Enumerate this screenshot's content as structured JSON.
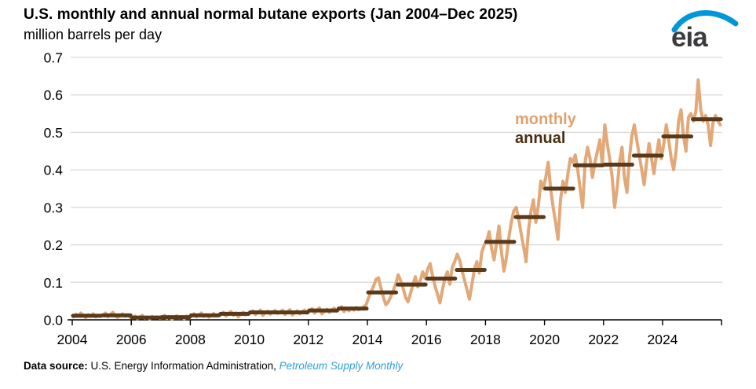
{
  "header": {
    "title": "U.S. monthly and annual normal butane exports (Jan 2004–Dec 2025)",
    "subtitle": "million barrels per day"
  },
  "logo": {
    "text": "eia"
  },
  "legend": {
    "monthly_label": "monthly",
    "annual_label": "annual"
  },
  "footer": {
    "label": "Data source: ",
    "organization": "U.S. Energy Information Administration, ",
    "publication": "Petroleum Supply Monthly"
  },
  "colors": {
    "monthly": "#e2a878",
    "annual": "#5b3a1a",
    "legend_monthly": "#dfa270",
    "legend_annual": "#4b2e11",
    "grid": "#d9d9d9",
    "axis": "#000000",
    "tick_text": "#000000",
    "link_blue": "#2f9fd6",
    "logo_blue": "#0096d7",
    "logo_text": "#3b3b3d"
  },
  "chart_data": {
    "type": "line",
    "title": "U.S. monthly and annual normal butane exports (Jan 2004–Dec 2025)",
    "ylabel": "million barrels per day",
    "xlabel": "",
    "ylim": [
      0.0,
      0.7
    ],
    "yticks": [
      "0.0",
      "0.1",
      "0.2",
      "0.3",
      "0.4",
      "0.5",
      "0.6",
      "0.7"
    ],
    "xlim": [
      2004,
      2026
    ],
    "xticks": [
      2004,
      2006,
      2008,
      2010,
      2012,
      2014,
      2016,
      2018,
      2020,
      2022,
      2024
    ],
    "grid": "horizontal",
    "legend_position": "inside-upper-middle",
    "period_start": "2004-01",
    "period_end": "2025-12",
    "years": [
      2004,
      2005,
      2006,
      2007,
      2008,
      2009,
      2010,
      2011,
      2012,
      2013,
      2014,
      2015,
      2016,
      2017,
      2018,
      2019,
      2020,
      2021,
      2022,
      2023,
      2024,
      2025
    ],
    "series": [
      {
        "name": "monthly",
        "type": "monthly-line"
      },
      {
        "name": "annual",
        "type": "annual-step"
      }
    ],
    "monthly_by_year": {
      "2004": [
        0.008,
        0.015,
        0.01,
        0.018,
        0.012,
        0.006,
        0.014,
        0.01,
        0.016,
        0.008,
        0.012,
        0.01
      ],
      "2005": [
        0.012,
        0.018,
        0.008,
        0.014,
        0.02,
        0.01,
        0.006,
        0.012,
        0.016,
        0.009,
        0.013,
        0.007
      ],
      "2006": [
        0.005,
        0.01,
        0.003,
        0.008,
        0.012,
        0.004,
        0.007,
        0.002,
        0.009,
        0.005,
        0.008,
        0.004
      ],
      "2007": [
        0.006,
        0.012,
        0.004,
        0.009,
        0.002,
        0.007,
        0.011,
        0.005,
        0.008,
        0.003,
        0.01,
        0.006
      ],
      "2008": [
        0.01,
        0.016,
        0.008,
        0.013,
        0.018,
        0.009,
        0.014,
        0.007,
        0.012,
        0.017,
        0.01,
        0.014
      ],
      "2009": [
        0.014,
        0.02,
        0.01,
        0.016,
        0.022,
        0.012,
        0.018,
        0.008,
        0.015,
        0.02,
        0.013,
        0.018
      ],
      "2010": [
        0.018,
        0.024,
        0.014,
        0.02,
        0.026,
        0.012,
        0.019,
        0.023,
        0.015,
        0.021,
        0.025,
        0.017
      ],
      "2011": [
        0.02,
        0.026,
        0.014,
        0.021,
        0.027,
        0.013,
        0.019,
        0.024,
        0.016,
        0.022,
        0.026,
        0.018
      ],
      "2012": [
        0.024,
        0.03,
        0.018,
        0.025,
        0.032,
        0.016,
        0.022,
        0.028,
        0.02,
        0.026,
        0.031,
        0.023
      ],
      "2013": [
        0.028,
        0.035,
        0.022,
        0.03,
        0.024,
        0.032,
        0.026,
        0.033,
        0.027,
        0.03,
        0.035,
        0.04
      ],
      "2014": [
        0.06,
        0.075,
        0.09,
        0.108,
        0.112,
        0.085,
        0.06,
        0.04,
        0.048,
        0.062,
        0.078,
        0.095
      ],
      "2015": [
        0.12,
        0.105,
        0.085,
        0.06,
        0.048,
        0.07,
        0.095,
        0.115,
        0.088,
        0.105,
        0.128,
        0.11
      ],
      "2016": [
        0.135,
        0.15,
        0.118,
        0.09,
        0.068,
        0.045,
        0.08,
        0.11,
        0.128,
        0.095,
        0.14,
        0.155
      ],
      "2017": [
        0.175,
        0.16,
        0.13,
        0.105,
        0.08,
        0.055,
        0.095,
        0.135,
        0.155,
        0.125,
        0.18,
        0.2
      ],
      "2018": [
        0.21,
        0.235,
        0.19,
        0.16,
        0.205,
        0.25,
        0.18,
        0.13,
        0.165,
        0.22,
        0.26,
        0.29
      ],
      "2019": [
        0.3,
        0.27,
        0.23,
        0.195,
        0.155,
        0.24,
        0.29,
        0.32,
        0.26,
        0.305,
        0.37,
        0.35
      ],
      "2020": [
        0.38,
        0.42,
        0.35,
        0.3,
        0.26,
        0.215,
        0.32,
        0.37,
        0.34,
        0.39,
        0.43,
        0.42
      ],
      "2021": [
        0.44,
        0.4,
        0.35,
        0.3,
        0.42,
        0.46,
        0.43,
        0.38,
        0.42,
        0.45,
        0.48,
        0.415
      ],
      "2022": [
        0.52,
        0.47,
        0.43,
        0.38,
        0.3,
        0.35,
        0.42,
        0.46,
        0.38,
        0.34,
        0.43,
        0.49
      ],
      "2023": [
        0.52,
        0.48,
        0.44,
        0.4,
        0.36,
        0.42,
        0.47,
        0.43,
        0.39,
        0.44,
        0.48,
        0.43
      ],
      "2024": [
        0.47,
        0.52,
        0.48,
        0.43,
        0.4,
        0.45,
        0.53,
        0.56,
        0.49,
        0.45,
        0.54,
        0.55
      ],
      "2025": [
        0.53,
        0.555,
        0.64,
        0.56,
        0.53,
        0.545,
        0.52,
        0.465,
        0.525,
        0.545,
        0.53,
        0.52
      ]
    },
    "annual_values": [
      0.011,
      0.012,
      0.006,
      0.007,
      0.012,
      0.016,
      0.02,
      0.02,
      0.025,
      0.03,
      0.073,
      0.094,
      0.11,
      0.133,
      0.208,
      0.274,
      0.35,
      0.412,
      0.414,
      0.438,
      0.489,
      0.535
    ]
  }
}
